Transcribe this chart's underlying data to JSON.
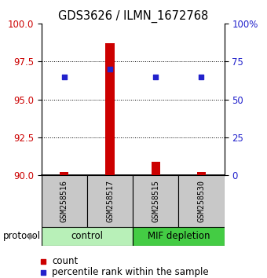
{
  "title": "GDS3626 / ILMN_1672768",
  "samples": [
    "GSM258516",
    "GSM258517",
    "GSM258515",
    "GSM258530"
  ],
  "bar_bottoms": [
    90.0,
    90.0,
    90.0,
    90.0
  ],
  "bar_tops": [
    90.2,
    98.7,
    90.9,
    90.2
  ],
  "percentile_ranks": [
    96.5,
    97.0,
    96.5,
    96.5
  ],
  "ylim_left": [
    90,
    100
  ],
  "yticks_left": [
    90,
    92.5,
    95,
    97.5,
    100
  ],
  "yticks_right": [
    0,
    25,
    50,
    75,
    100
  ],
  "ytick_labels_right": [
    "0",
    "25",
    "50",
    "75",
    "100%"
  ],
  "bar_color": "#cc0000",
  "square_color": "#2222cc",
  "protocol_groups": [
    {
      "label": "control",
      "start": 0,
      "end": 2,
      "color": "#b8f0b8"
    },
    {
      "label": "MIF depletion",
      "start": 2,
      "end": 4,
      "color": "#44cc44"
    }
  ],
  "sample_box_color": "#c8c8c8",
  "dotted_yticks": [
    92.5,
    95,
    97.5
  ],
  "legend_count_color": "#cc0000",
  "legend_pct_color": "#2222cc",
  "left_axis_color": "#cc0000",
  "right_axis_color": "#2222cc"
}
